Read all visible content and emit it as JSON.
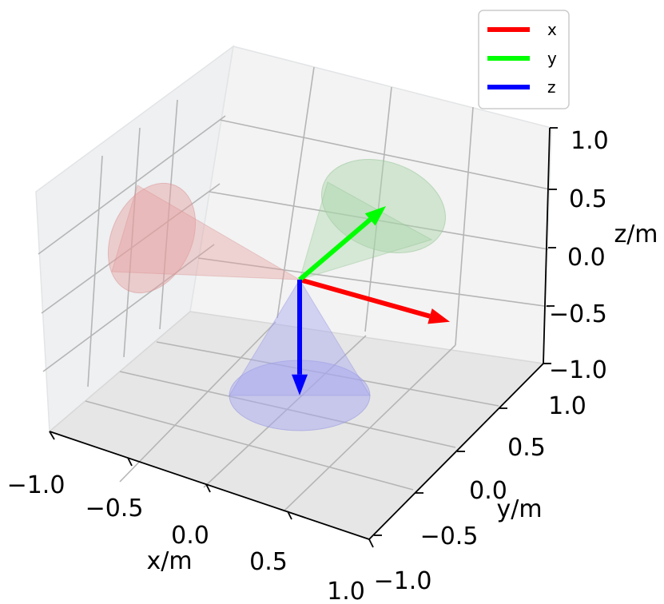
{
  "chart_data": {
    "type": "3d-vectors",
    "title": "",
    "xlabel": "x/m",
    "ylabel": "y/m",
    "zlabel": "z/m",
    "xlim": [
      -1.0,
      1.0
    ],
    "ylim": [
      -1.0,
      1.0
    ],
    "zlim": [
      -1.0,
      1.0
    ],
    "xticks": [
      "−1.0",
      "−0.5",
      "0.0",
      "0.5",
      "1.0"
    ],
    "yticks": [
      "−1.0",
      "−0.5",
      "0.0",
      "0.5",
      "1.0"
    ],
    "zticks": [
      "−1.0",
      "−0.5",
      "0.0",
      "0.5",
      "1.0"
    ],
    "grid": true,
    "legend": {
      "placement": "top-right",
      "entries": [
        {
          "label": "x",
          "color": "#ff0000"
        },
        {
          "label": "y",
          "color": "#00ff00"
        },
        {
          "label": "z",
          "color": "#0000ff"
        }
      ]
    },
    "series": [
      {
        "name": "x",
        "color": "#ff0000",
        "origin": [
          0,
          0,
          0
        ],
        "vector": [
          -0.8,
          0.0,
          0.0
        ],
        "cone_color": "#e6a0a0"
      },
      {
        "name": "y",
        "color": "#00ff00",
        "origin": [
          0,
          0,
          0
        ],
        "vector": [
          0.0,
          0.8,
          0.0
        ],
        "cone_color": "#a8d4a8"
      },
      {
        "name": "z",
        "color": "#0000ff",
        "origin": [
          0,
          0,
          0
        ],
        "vector": [
          0.0,
          0.0,
          -0.8
        ],
        "cone_color": "#a8a8f0"
      }
    ]
  }
}
